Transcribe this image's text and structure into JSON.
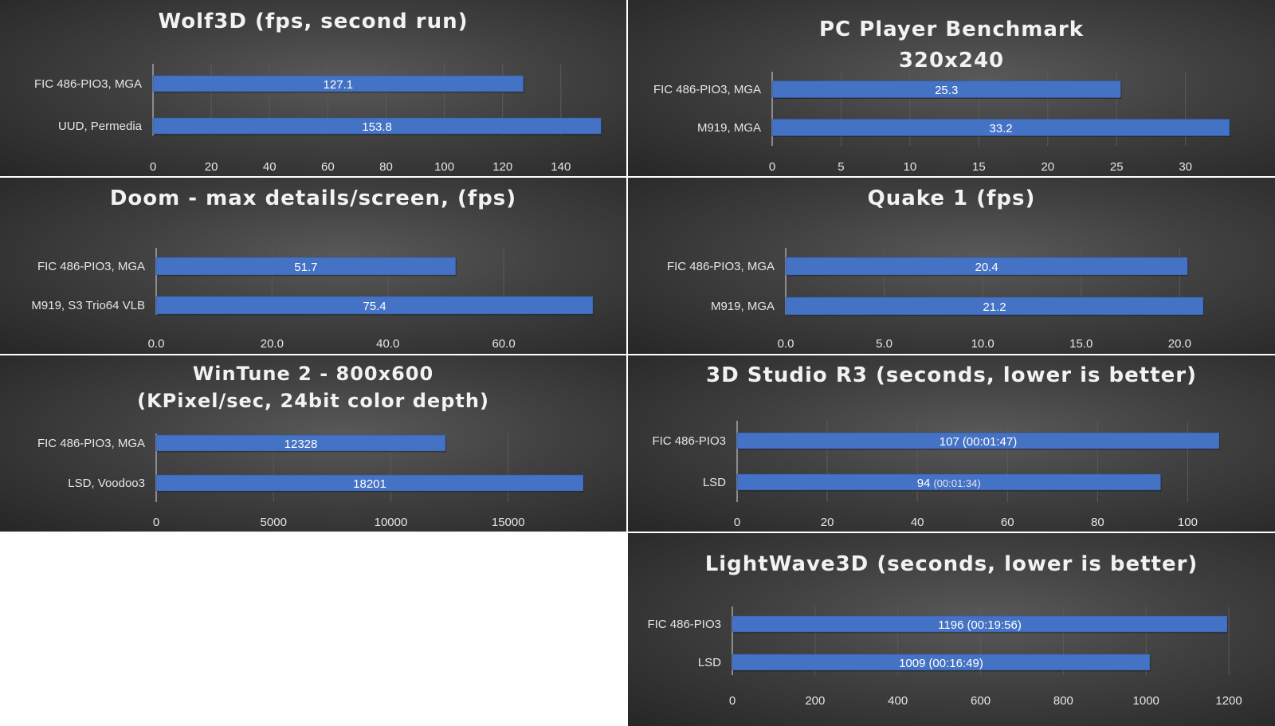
{
  "colors": {
    "bar": "#4472c4",
    "bar_edge": "#2f5597",
    "grid": "#5a5a5a",
    "axis": "#a6a6a6"
  },
  "chart_data": [
    {
      "type": "bar",
      "title": [
        "Wolf3D (fps, second run)"
      ],
      "categories": [
        "FIC 486-PIO3, MGA",
        "UUD, Permedia"
      ],
      "values": [
        127.1,
        153.8
      ],
      "data_labels": [
        {
          "main": "127.1"
        },
        {
          "main": "153.8"
        }
      ],
      "ticks": [
        "0",
        "20",
        "40",
        "60",
        "80",
        "100",
        "120",
        "140"
      ],
      "xlim": [
        0,
        154
      ]
    },
    {
      "type": "bar",
      "title": [
        "PC Player Benchmark",
        "320x240"
      ],
      "categories": [
        "FIC 486-PIO3, MGA",
        "M919, MGA"
      ],
      "values": [
        25.3,
        33.2
      ],
      "data_labels": [
        {
          "main": "25.3"
        },
        {
          "main": "33.2"
        }
      ],
      "ticks": [
        "0",
        "5",
        "10",
        "15",
        "20",
        "25",
        "30"
      ],
      "xlim": [
        0,
        33.2
      ]
    },
    {
      "type": "bar",
      "title": [
        "Doom - max details/screen, (fps)"
      ],
      "categories": [
        "FIC 486-PIO3, MGA",
        "M919, S3 Trio64 VLB"
      ],
      "values": [
        51.7,
        75.4
      ],
      "data_labels": [
        {
          "main": "51.7"
        },
        {
          "main": "75.4"
        }
      ],
      "ticks": [
        "0.0",
        "20.0",
        "40.0",
        "60.0"
      ],
      "xlim": [
        0,
        75.4
      ]
    },
    {
      "type": "bar",
      "title": [
        "Quake 1 (fps)"
      ],
      "categories": [
        "FIC 486-PIO3, MGA",
        "M919, MGA"
      ],
      "values": [
        20.4,
        21.2
      ],
      "data_labels": [
        {
          "main": "20.4"
        },
        {
          "main": "21.2"
        }
      ],
      "ticks": [
        "0.0",
        "5.0",
        "10.0",
        "15.0",
        "20.0"
      ],
      "xlim": [
        0,
        21.2
      ]
    },
    {
      "type": "bar",
      "title": [
        "WinTune 2 - 800x600",
        "(KPixel/sec, 24bit color depth)"
      ],
      "categories": [
        "FIC 486-PIO3, MGA",
        "LSD, Voodoo3"
      ],
      "values": [
        12328,
        18201
      ],
      "data_labels": [
        {
          "main": "12328"
        },
        {
          "main": "18201"
        }
      ],
      "ticks": [
        "0",
        "5000",
        "10000",
        "15000"
      ],
      "xlim": [
        0,
        18201
      ]
    },
    {
      "type": "bar",
      "title": [
        "3D Studio R3 (seconds, lower is better)"
      ],
      "categories": [
        "FIC 486-PIO3",
        "LSD"
      ],
      "values": [
        107,
        94
      ],
      "data_labels": [
        {
          "main": "107",
          "sub": "(00:01:47)"
        },
        {
          "main": "94",
          "sub": "(00:01:34)",
          "sub_small": true
        }
      ],
      "ticks": [
        "0",
        "20",
        "40",
        "60",
        "80",
        "100"
      ],
      "xlim": [
        0,
        107
      ]
    },
    {
      "type": "bar",
      "title": [
        "LightWave3D (seconds, lower is better)"
      ],
      "categories": [
        "FIC 486-PIO3",
        "LSD"
      ],
      "values": [
        1196,
        1009
      ],
      "data_labels": [
        {
          "main": "1196",
          "sub": "(00:19:56)"
        },
        {
          "main": "1009",
          "sub": "(00:16:49)"
        }
      ],
      "ticks": [
        "0",
        "200",
        "400",
        "600",
        "800",
        "1000",
        "1200"
      ],
      "xlim": [
        0,
        1196
      ]
    }
  ]
}
